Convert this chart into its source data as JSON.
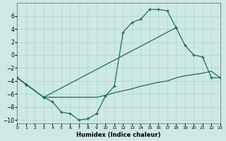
{
  "xlabel": "Humidex (Indice chaleur)",
  "background_color": "#cde8e5",
  "grid_color": "#aed4d0",
  "line_color": "#1e6b60",
  "xlim": [
    0,
    23
  ],
  "ylim": [
    -10.5,
    8
  ],
  "xticks": [
    0,
    1,
    2,
    3,
    4,
    5,
    6,
    7,
    8,
    9,
    10,
    11,
    12,
    13,
    14,
    15,
    16,
    17,
    18,
    19,
    20,
    21,
    22,
    23
  ],
  "yticks": [
    -10,
    -8,
    -6,
    -4,
    -2,
    0,
    2,
    4,
    6
  ],
  "line1_x": [
    0,
    1,
    3,
    4,
    5,
    6,
    7,
    8,
    9,
    10,
    11,
    12,
    13,
    14,
    15,
    16,
    17,
    18
  ],
  "line1_y": [
    -3.5,
    -4.5,
    -6.5,
    -7.2,
    -8.8,
    -9.0,
    -10.0,
    -9.8,
    -9.0,
    -6.3,
    -4.8,
    3.5,
    5.0,
    5.5,
    7.0,
    7.0,
    6.8,
    4.2
  ],
  "line2_x": [
    0,
    1,
    3,
    18,
    19,
    20,
    21,
    22,
    23
  ],
  "line2_y": [
    -3.5,
    -4.5,
    -6.5,
    4.2,
    1.5,
    0.0,
    -0.3,
    -3.5,
    -3.5
  ],
  "line3_x": [
    0,
    3,
    9,
    10,
    11,
    12,
    13,
    14,
    15,
    16,
    17,
    18,
    19,
    20,
    21,
    22,
    23
  ],
  "line3_y": [
    -3.5,
    -6.5,
    -6.5,
    -6.2,
    -5.8,
    -5.5,
    -5.2,
    -4.8,
    -4.5,
    -4.2,
    -4.0,
    -3.5,
    -3.2,
    -3.0,
    -2.8,
    -2.5,
    -3.5
  ],
  "line1_markers": true,
  "line2_markers": true,
  "line3_markers": false
}
